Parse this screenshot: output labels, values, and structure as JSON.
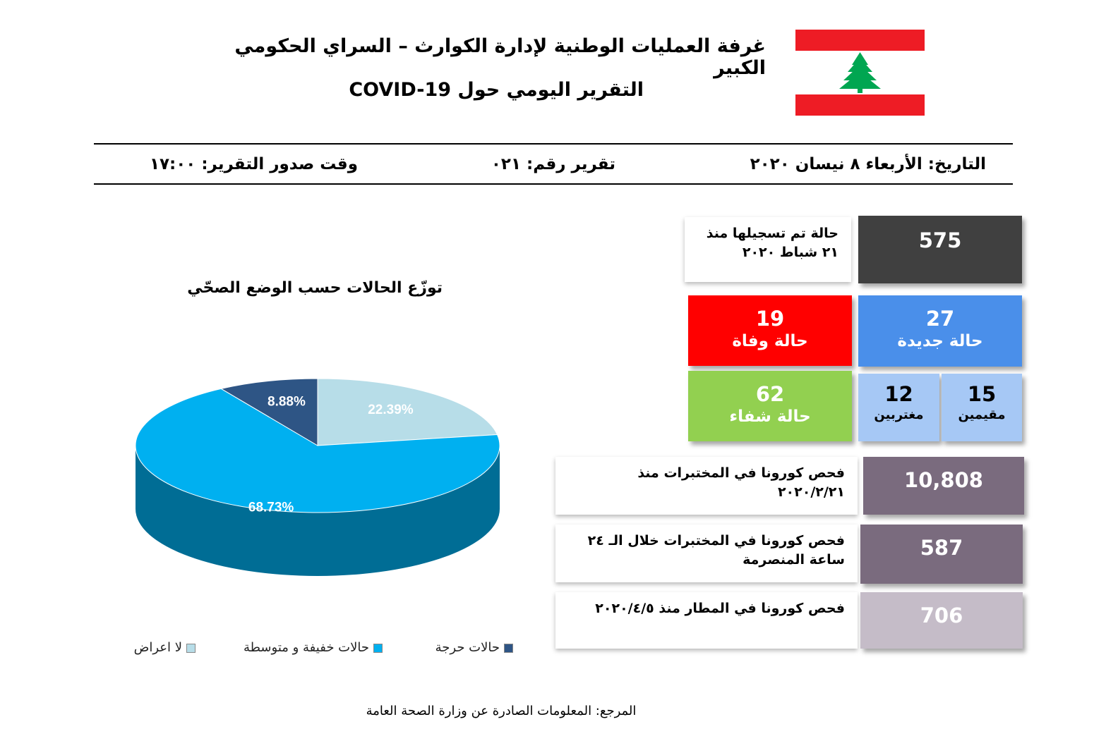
{
  "header": {
    "title": "غرفة العمليات الوطنية لإدارة الكوارث – السراي الحكومي الكبير",
    "subtitle": "التقرير اليومي حول COVID-19"
  },
  "meta": {
    "date": "التاريخ: الأربعاء ٨ نيسان ٢٠٢٠",
    "report_no": "تقرير رقم: ٠٢١",
    "issue_time": "وقت صدور التقرير: ١٧:٠٠"
  },
  "stats": {
    "total_label_line1": "حالة تم تسجيلها منذ",
    "total_label_line2": "٢١ شباط ٢٠٢٠",
    "total_value": "575",
    "deaths_value": "19",
    "deaths_label": "حالة وفاة",
    "new_value": "27",
    "new_label": "حالة جديدة",
    "recovered_value": "62",
    "recovered_label": "حالة شفاء",
    "expats_value": "12",
    "expats_label": "مغتربين",
    "residents_value": "15",
    "residents_label": "مقيمين",
    "labs_total_label_line1": "فحص كورونا في المختبرات منذ",
    "labs_total_label_line2": "٢٠٢٠/٢/٢١",
    "labs_total_value": "10,808",
    "labs_24h_label_line1": "فحص كورونا في المختبرات خلال الـ ٢٤",
    "labs_24h_label_line2": "ساعة المنصرمة",
    "labs_24h_value": "587",
    "airport_label": "فحص كورونا في المطار منذ ٢٠٢٠/٤/٥",
    "airport_value": "706"
  },
  "colors": {
    "total": "#404040",
    "deaths": "#ff0000",
    "new": "#4a8fea",
    "recovered": "#92d050",
    "split": "#a6c8f5",
    "labs": "#7a6b7e",
    "airport": "#c5bcc8"
  },
  "chart_data": {
    "type": "pie",
    "title": "توزّع الحالات حسب الوضع الصحّي",
    "series": [
      {
        "name": "لا اعراض",
        "value": 22.39,
        "label": "22.39%",
        "color": "#b7dde8"
      },
      {
        "name": "حالات خفيفة و متوسطة",
        "value": 68.73,
        "label": "68.73%",
        "color": "#00b0f0"
      },
      {
        "name": "حالات حرجة",
        "value": 8.88,
        "label": "8.88%",
        "color": "#2e5585"
      }
    ]
  },
  "footer": {
    "source": "المرجع: المعلومات الصادرة عن وزارة الصحة العامة"
  }
}
